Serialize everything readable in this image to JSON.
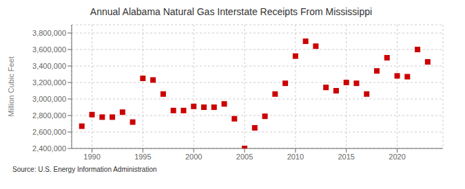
{
  "chart_data": {
    "type": "scatter",
    "title": "Annual Alabama Natural Gas Interstate Receipts From Mississippi",
    "ylabel": "Million Cubic Feet",
    "annotation": "Source: U.S. Energy Information Administration",
    "x": [
      1989,
      1990,
      1991,
      1992,
      1993,
      1994,
      1995,
      1996,
      1997,
      1998,
      1999,
      2000,
      2001,
      2002,
      2003,
      2004,
      2005,
      2006,
      2007,
      2008,
      2009,
      2010,
      2011,
      2012,
      2013,
      2014,
      2015,
      2016,
      2017,
      2018,
      2019,
      2020,
      2021,
      2022,
      2023
    ],
    "values": [
      2670000,
      2810000,
      2780000,
      2780000,
      2840000,
      2720000,
      3250000,
      3230000,
      3060000,
      2860000,
      2860000,
      2910000,
      2900000,
      2900000,
      2940000,
      2760000,
      2400000,
      2650000,
      2790000,
      3060000,
      3190000,
      3520000,
      3700000,
      3640000,
      3140000,
      3100000,
      3200000,
      3190000,
      3060000,
      3340000,
      3500000,
      3280000,
      3270000,
      3600000,
      3450000
    ],
    "color": "#cc0000",
    "marker": "square",
    "xlim": [
      1988.0,
      2024.5
    ],
    "xticks": [
      1990,
      1995,
      2000,
      2005,
      2010,
      2015,
      2020
    ],
    "ylim": [
      2400000,
      3900000
    ],
    "yticks": [
      {
        "value": 2400000,
        "label": "2,400,000"
      },
      {
        "value": 2600000,
        "label": "2,600,000"
      },
      {
        "value": 2800000,
        "label": "2,800,000"
      },
      {
        "value": 3000000,
        "label": "3,000,000"
      },
      {
        "value": 3200000,
        "label": "3,200,000"
      },
      {
        "value": 3400000,
        "label": "3,400,000"
      },
      {
        "value": 3600000,
        "label": "3,600,000"
      },
      {
        "value": 3800000,
        "label": "3,800,000"
      }
    ],
    "grid": true
  }
}
